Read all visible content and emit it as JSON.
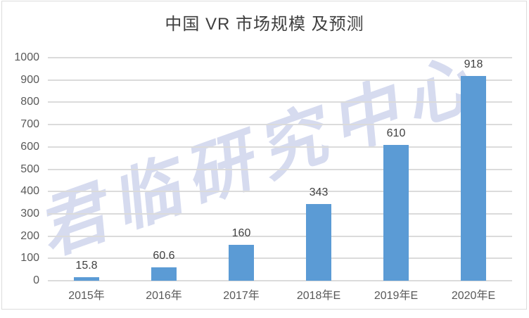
{
  "title": "中国 VR 市场规模 及预测",
  "watermark": {
    "text": "君临研究中心",
    "color": "#aab3dd"
  },
  "chart_data": {
    "type": "bar",
    "title": "中国 VR 市场规模 及预测",
    "categories": [
      "2015年",
      "2016年",
      "2017年",
      "2018年E",
      "2019年E",
      "2020年E"
    ],
    "values": [
      15.8,
      60.6,
      160,
      343,
      610,
      918
    ],
    "value_labels": [
      "15.8",
      "60.6",
      "160",
      "343",
      "610",
      "918"
    ],
    "xlabel": "",
    "ylabel": "",
    "ylim": [
      0,
      1000
    ],
    "yticks": [
      0,
      100,
      200,
      300,
      400,
      500,
      600,
      700,
      800,
      900,
      1000
    ],
    "grid": true,
    "legend": false,
    "bar_color": "#5b9bd5",
    "gridline_color": "#dbdbdb",
    "axis_text_color": "#595959",
    "label_text_color": "#404040",
    "title_color": "#3f3f3f"
  }
}
